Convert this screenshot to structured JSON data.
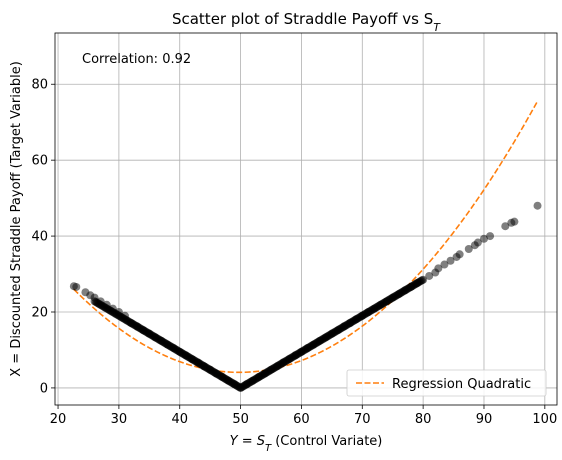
{
  "chart_data": {
    "type": "scatter",
    "title": "Scatter plot of Straddle Payoff vs S",
    "title_subscript": "T",
    "xlabel_prefix": "Y = S",
    "xlabel_subscript": "T",
    "xlabel_suffix": " (Control Variate)",
    "ylabel": "X = Discounted Straddle Payoff (Target Variable)",
    "annotation": "Correlation: 0.92",
    "xlim": [
      19.5,
      102
    ],
    "ylim": [
      -4.5,
      93.5
    ],
    "xticks": [
      20,
      30,
      40,
      50,
      60,
      70,
      80,
      90,
      100
    ],
    "yticks": [
      0,
      20,
      40,
      60,
      80
    ],
    "grid": true,
    "legend_position": "lower-right",
    "point_color": "#000000",
    "line_color": "#ff7f0e",
    "strike": 50,
    "discount": 0.951,
    "series": [
      {
        "type": "scatter",
        "x": [
          22.6,
          23.0,
          24.5,
          25.3,
          26.0,
          27.0,
          28.0,
          29.0,
          30.0,
          31.0,
          32.0,
          33.0,
          34.0,
          35.0,
          36.0,
          37.0,
          38.0,
          39.0,
          40.0,
          41.0,
          42.0,
          43.0,
          44.0,
          45.0,
          46.0,
          47.0,
          48.0,
          49.0,
          50.0,
          51.0,
          52.0,
          53.0,
          54.0,
          55.0,
          56.0,
          57.0,
          58.0,
          59.0,
          60.0,
          61.0,
          62.0,
          63.0,
          64.0,
          65.0,
          66.0,
          67.0,
          68.0,
          69.0,
          70.0,
          71.0,
          72.0,
          73.0,
          74.0,
          75.0,
          76.0,
          77.0,
          78.0,
          79.0,
          80.0,
          81.0,
          82.0,
          82.5,
          83.5,
          84.5,
          85.5,
          86.0,
          87.5,
          88.5,
          89.0,
          90.0,
          91.0,
          93.5,
          94.5,
          95.0,
          98.8
        ],
        "y": [
          26.8,
          26.6,
          25.2,
          24.4,
          23.8,
          22.8,
          21.9,
          20.9,
          20.0,
          19.0,
          17.1,
          16.2,
          15.2,
          14.3,
          13.3,
          12.4,
          11.4,
          10.5,
          9.5,
          8.6,
          7.6,
          6.7,
          5.7,
          4.8,
          3.8,
          2.9,
          1.9,
          1.0,
          0.0,
          1.0,
          1.9,
          2.9,
          3.8,
          4.8,
          5.7,
          6.7,
          7.6,
          8.6,
          9.5,
          10.5,
          11.4,
          12.4,
          13.3,
          14.3,
          15.2,
          16.2,
          17.1,
          18.1,
          19.0,
          20.0,
          20.9,
          21.9,
          22.8,
          23.8,
          24.7,
          25.7,
          26.6,
          27.6,
          28.5,
          29.5,
          30.4,
          31.5,
          32.5,
          33.5,
          34.5,
          35.2,
          36.6,
          37.6,
          38.3,
          39.3,
          40.0,
          42.6,
          43.5,
          43.8,
          48.0
        ]
      },
      {
        "type": "line",
        "name": "Regression Quadratic",
        "quadratic_coefficients": {
          "a": 0.0297,
          "b": -2.955,
          "c": 77.6
        },
        "x_range": [
          22.6,
          98.8
        ]
      }
    ]
  }
}
